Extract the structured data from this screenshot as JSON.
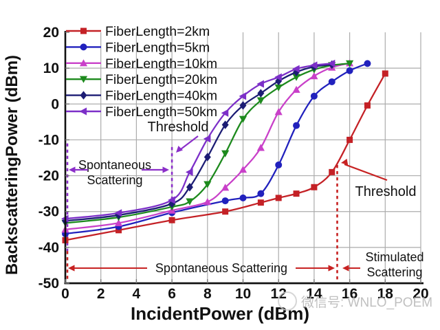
{
  "watermark": {
    "text": "微信号: WNLO_POEM"
  },
  "chart_data": {
    "type": "line",
    "title": "",
    "xlabel": "IncidentPower (dBm)",
    "ylabel": "BackscatteringPower (dBm)",
    "xlim": [
      0,
      20
    ],
    "ylim": [
      -50,
      20
    ],
    "xticks": [
      0,
      2,
      4,
      6,
      8,
      10,
      12,
      14,
      16,
      18,
      20
    ],
    "yticks": [
      20,
      10,
      0,
      -10,
      -20,
      -30,
      -40,
      -50
    ],
    "grid": true,
    "legend_position": "top-left-inside",
    "colors": {
      "axis": "#111111",
      "grid": "#ababab",
      "purple_annotation": "#8b2fc9",
      "red_annotation": "#c72222"
    },
    "series": [
      {
        "id": "2km",
        "name": "FiberLength=2km",
        "color": "#c42126",
        "marker": "square",
        "points": [
          [
            0,
            -38
          ],
          [
            3,
            -35.2
          ],
          [
            6,
            -32.4
          ],
          [
            9,
            -30
          ],
          [
            11,
            -27.5
          ],
          [
            12,
            -26.2
          ],
          [
            13,
            -25
          ],
          [
            14,
            -23.2
          ],
          [
            15,
            -19
          ],
          [
            16,
            -10
          ],
          [
            17,
            -0.4
          ],
          [
            18,
            8.5
          ]
        ]
      },
      {
        "id": "5km",
        "name": "FiberLength=5km",
        "color": "#2121bd",
        "marker": "circle",
        "points": [
          [
            0,
            -36.2
          ],
          [
            3,
            -34.2
          ],
          [
            6,
            -30.3
          ],
          [
            9,
            -27
          ],
          [
            10,
            -26.2
          ],
          [
            11,
            -25
          ],
          [
            12,
            -17
          ],
          [
            13,
            -6
          ],
          [
            14,
            2.2
          ],
          [
            15,
            6.2
          ],
          [
            16,
            9.3
          ],
          [
            17,
            11.3
          ]
        ]
      },
      {
        "id": "10km",
        "name": "FiberLength=10km",
        "color": "#c940c9",
        "marker": "triangle-up",
        "points": [
          [
            0,
            -35
          ],
          [
            3,
            -33.2
          ],
          [
            6,
            -29.7
          ],
          [
            8,
            -27.3
          ],
          [
            9,
            -23.3
          ],
          [
            10,
            -18.3
          ],
          [
            11,
            -12.2
          ],
          [
            12,
            -2.2
          ],
          [
            13,
            4
          ],
          [
            14,
            7.8
          ],
          [
            15,
            10.2
          ],
          [
            16,
            11.4
          ]
        ]
      },
      {
        "id": "20km",
        "name": "FiberLength=20km",
        "color": "#1d8a1d",
        "marker": "triangle-down",
        "points": [
          [
            0,
            -33.2
          ],
          [
            3,
            -31.6
          ],
          [
            6,
            -28.7
          ],
          [
            7,
            -27.2
          ],
          [
            8,
            -22.4
          ],
          [
            9,
            -13.8
          ],
          [
            10,
            -4.2
          ],
          [
            11,
            1
          ],
          [
            12,
            4.6
          ],
          [
            13,
            7.5
          ],
          [
            14,
            9.6
          ],
          [
            15,
            10.8
          ],
          [
            16,
            11.3
          ]
        ]
      },
      {
        "id": "40km",
        "name": "FiberLength=40km",
        "color": "#1c1c74",
        "marker": "diamond",
        "points": [
          [
            0,
            -32.6
          ],
          [
            3,
            -31
          ],
          [
            6,
            -27.8
          ],
          [
            7,
            -23.2
          ],
          [
            8,
            -14.8
          ],
          [
            9,
            -5.8
          ],
          [
            10,
            -0.4
          ],
          [
            11,
            3
          ],
          [
            12,
            6.4
          ],
          [
            13,
            8.9
          ],
          [
            14,
            10.4
          ],
          [
            15,
            11
          ]
        ]
      },
      {
        "id": "50km",
        "name": "FiberLength=50km",
        "color": "#7c2fc8",
        "marker": "triangle-left",
        "points": [
          [
            0,
            -32
          ],
          [
            3,
            -30.4
          ],
          [
            6,
            -26.8
          ],
          [
            7,
            -19
          ],
          [
            8,
            -9.7
          ],
          [
            9,
            -2.5
          ],
          [
            10,
            2.2
          ],
          [
            11,
            5.6
          ],
          [
            12,
            7.5
          ],
          [
            13,
            9.8
          ],
          [
            14,
            10.8
          ],
          [
            15,
            11.3
          ]
        ]
      }
    ],
    "reference_lines": [
      {
        "axis": "x",
        "value": 0,
        "color": "#8b2fc9",
        "style": "dashed",
        "y_from": -11,
        "y_to": -41
      },
      {
        "axis": "x",
        "value": 0,
        "color": "#c72222",
        "style": "dashed",
        "y_from": -41,
        "y_to": -49.5
      },
      {
        "axis": "x",
        "value": 6,
        "color": "#8b2fc9",
        "style": "dashed",
        "y_from": -12,
        "y_to": -31
      },
      {
        "axis": "x",
        "value": 15.3,
        "color": "#c72222",
        "style": "dashed",
        "y_from": -17,
        "y_to": -49.5
      }
    ],
    "annotations": {
      "threshold_upper": {
        "label": "Threshold",
        "points_to_x": 6
      },
      "threshold_right": {
        "label": "Threshold",
        "points_to_x": 15.3
      },
      "spontaneous_left": {
        "line1": "Spontaneous",
        "line2": "Scattering"
      },
      "spontaneous_bottom": {
        "label": "Spontaneous Scattering"
      },
      "stimulated_right": {
        "line1": "Stimulated",
        "line2": "Scattering"
      }
    }
  }
}
